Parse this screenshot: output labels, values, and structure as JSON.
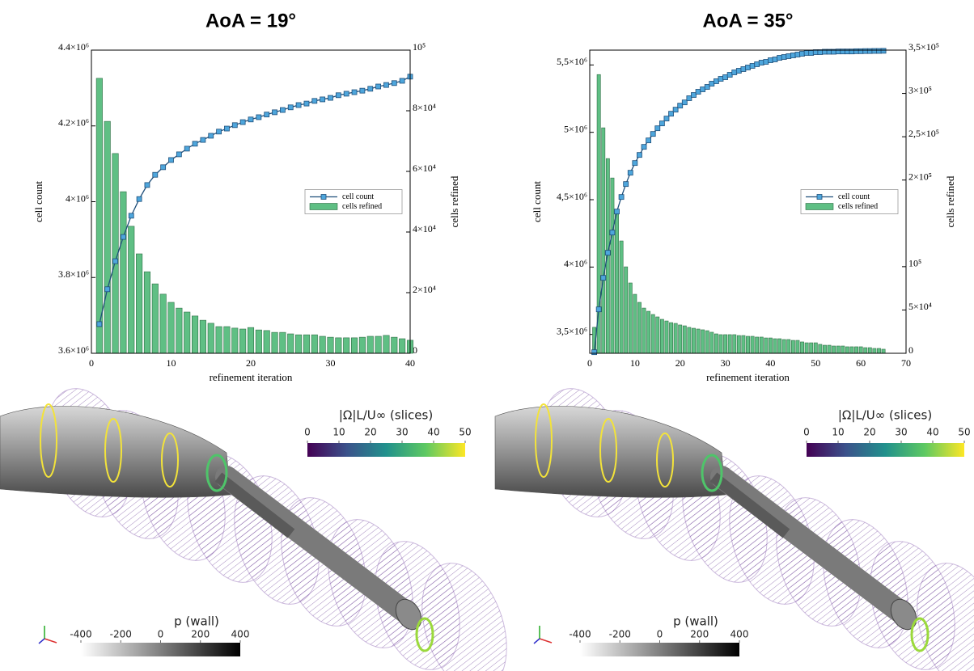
{
  "chart_data": [
    {
      "type": "combo",
      "title": "AoA = 19°",
      "xlabel": "refinement iteration",
      "ylabel": "cell count",
      "y2label": "cells refined",
      "x": [
        1,
        2,
        3,
        4,
        5,
        6,
        7,
        8,
        9,
        10,
        11,
        12,
        13,
        14,
        15,
        16,
        17,
        18,
        19,
        20,
        21,
        22,
        23,
        24,
        25,
        26,
        27,
        28,
        29,
        30,
        31,
        32,
        33,
        34,
        35,
        36,
        37,
        38,
        39,
        40
      ],
      "series": [
        {
          "name": "cell count",
          "type": "line",
          "color": "#1f4f7a",
          "marker_color": "#4ea6dc",
          "values": [
            3677000,
            3769000,
            3843000,
            3907000,
            3963000,
            4007000,
            4044000,
            4071000,
            4091000,
            4110000,
            4125000,
            4140000,
            4153000,
            4163000,
            4174000,
            4185000,
            4193000,
            4202000,
            4210000,
            4217000,
            4223000,
            4230000,
            4236000,
            4242000,
            4249000,
            4255000,
            4259000,
            4266000,
            4270000,
            4274000,
            4281000,
            4285000,
            4289000,
            4293000,
            4298000,
            4304000,
            4308000,
            4313000,
            4319000,
            4330000
          ]
        },
        {
          "name": "cells refined",
          "type": "bar",
          "axis": "y2",
          "color": "#5fbf84",
          "values": [
            90700,
            76500,
            65900,
            53300,
            41900,
            32800,
            26900,
            22900,
            19500,
            16800,
            14900,
            13600,
            12300,
            10900,
            9900,
            8800,
            8800,
            8300,
            8000,
            8500,
            7700,
            7500,
            6900,
            6900,
            6400,
            6100,
            6100,
            6100,
            5600,
            5300,
            5100,
            5100,
            5100,
            5300,
            5600,
            5600,
            5900,
            5300,
            4800,
            4300
          ]
        }
      ],
      "xlim": [
        0,
        40
      ],
      "xticks": [
        0,
        10,
        20,
        30,
        40
      ],
      "ylim": [
        3600000,
        4400000
      ],
      "yticks": [
        {
          "value": 3600000,
          "label": "3.6×10⁶"
        },
        {
          "value": 3800000,
          "label": "3.8×10⁶"
        },
        {
          "value": 4000000,
          "label": "4×10⁶"
        },
        {
          "value": 4200000,
          "label": "4.2×10⁶"
        },
        {
          "value": 4400000,
          "label": "4.4×10⁶"
        }
      ],
      "y2lim": [
        0,
        100000
      ],
      "y2ticks": [
        0,
        {
          "value": 20000,
          "label": "2×10⁴"
        },
        {
          "value": 40000,
          "label": "4×10⁴"
        },
        {
          "value": 60000,
          "label": "6×10⁴"
        },
        {
          "value": 80000,
          "label": "8×10⁴"
        },
        {
          "value": 100000,
          "label": "10⁵"
        }
      ],
      "legend": "center right",
      "grid": false
    },
    {
      "type": "combo",
      "title": "AoA = 35°",
      "xlabel": "refinement iteration",
      "ylabel": "cell count",
      "y2label": "cells refined",
      "x": [
        1,
        2,
        3,
        4,
        5,
        6,
        7,
        8,
        9,
        10,
        11,
        12,
        13,
        14,
        15,
        16,
        17,
        18,
        19,
        20,
        21,
        22,
        23,
        24,
        25,
        26,
        27,
        28,
        29,
        30,
        31,
        32,
        33,
        34,
        35,
        36,
        37,
        38,
        39,
        40,
        41,
        42,
        43,
        44,
        45,
        46,
        47,
        48,
        49,
        50,
        51,
        52,
        53,
        54,
        55,
        56,
        57,
        58,
        59,
        60,
        61,
        62,
        63,
        64,
        65
      ],
      "series": [
        {
          "name": "cell count",
          "type": "line",
          "color": "#1f4f7a",
          "marker_color": "#4ea6dc",
          "values": [
            3368000,
            3686000,
            3920000,
            4106000,
            4256000,
            4412000,
            4520000,
            4616000,
            4700000,
            4772000,
            4832000,
            4892000,
            4940000,
            4988000,
            5030000,
            5066000,
            5102000,
            5138000,
            5168000,
            5198000,
            5222000,
            5253000,
            5277000,
            5301000,
            5319000,
            5337000,
            5361000,
            5379000,
            5397000,
            5409000,
            5427000,
            5445000,
            5457000,
            5469000,
            5481000,
            5493000,
            5505000,
            5517000,
            5523000,
            5535000,
            5541000,
            5553000,
            5559000,
            5565000,
            5571000,
            5577000,
            5583000,
            5589000,
            5589000,
            5595000,
            5595000,
            5598000,
            5598000,
            5598000,
            5600000,
            5600000,
            5600000,
            5600000,
            5602000,
            5602000,
            5603000,
            5603000,
            5604000,
            5604000,
            5605000
          ]
        },
        {
          "name": "cells refined",
          "type": "bar",
          "axis": "y2",
          "color": "#5fbf84",
          "values": [
            30000,
            321800,
            260300,
            224800,
            202400,
            165100,
            129700,
            99800,
            81200,
            68100,
            58800,
            52200,
            48500,
            44800,
            42000,
            39200,
            37300,
            35400,
            34500,
            32700,
            31700,
            29900,
            28900,
            28000,
            27100,
            26100,
            24300,
            22400,
            21500,
            21500,
            21500,
            21500,
            20500,
            20500,
            19600,
            19600,
            18700,
            18700,
            17700,
            17700,
            16800,
            16800,
            15900,
            15900,
            14900,
            14900,
            13100,
            12100,
            12100,
            12100,
            10300,
            9300,
            9300,
            8400,
            8400,
            8400,
            7500,
            7500,
            7500,
            7500,
            6500,
            6500,
            5600,
            5600,
            4700
          ]
        }
      ],
      "xlim": [
        0,
        70
      ],
      "xticks": [
        0,
        10,
        20,
        30,
        40,
        50,
        60,
        70
      ],
      "ylim": [
        3360000,
        5610000
      ],
      "yticks": [
        {
          "value": 3500000,
          "label": "3,5×10⁶"
        },
        {
          "value": 4000000,
          "label": "4×10⁶"
        },
        {
          "value": 4500000,
          "label": "4,5×10⁶"
        },
        {
          "value": 5000000,
          "label": "5×10⁶"
        },
        {
          "value": 5500000,
          "label": "5,5×10⁶"
        }
      ],
      "y2lim": [
        0,
        350000
      ],
      "y2ticks": [
        0,
        {
          "value": 50000,
          "label": "5×10⁴"
        },
        {
          "value": 100000,
          "label": "10⁵"
        },
        {
          "value": 200000,
          "label": "2×10⁵"
        },
        {
          "value": 250000,
          "label": "2,5×10⁵"
        },
        {
          "value": 300000,
          "label": "3×10⁵"
        },
        {
          "value": 350000,
          "label": "3,5×10⁵"
        }
      ],
      "legend": "center right",
      "grid": false
    }
  ],
  "renderings": [
    {
      "vorticity_colorbar": {
        "label": "|Ω|L/U∞ (slices)",
        "ticks": [
          0,
          10,
          20,
          30,
          40,
          50
        ]
      },
      "pressure_colorbar": {
        "label": "p (wall)",
        "ticks": [
          -400,
          -200,
          0,
          200,
          400
        ]
      }
    },
    {
      "vorticity_colorbar": {
        "label": "|Ω|L/U∞ (slices)",
        "ticks": [
          0,
          10,
          20,
          30,
          40,
          50
        ]
      },
      "pressure_colorbar": {
        "label": "p (wall)",
        "ticks": [
          -400,
          -200,
          0,
          200,
          400
        ]
      }
    }
  ]
}
